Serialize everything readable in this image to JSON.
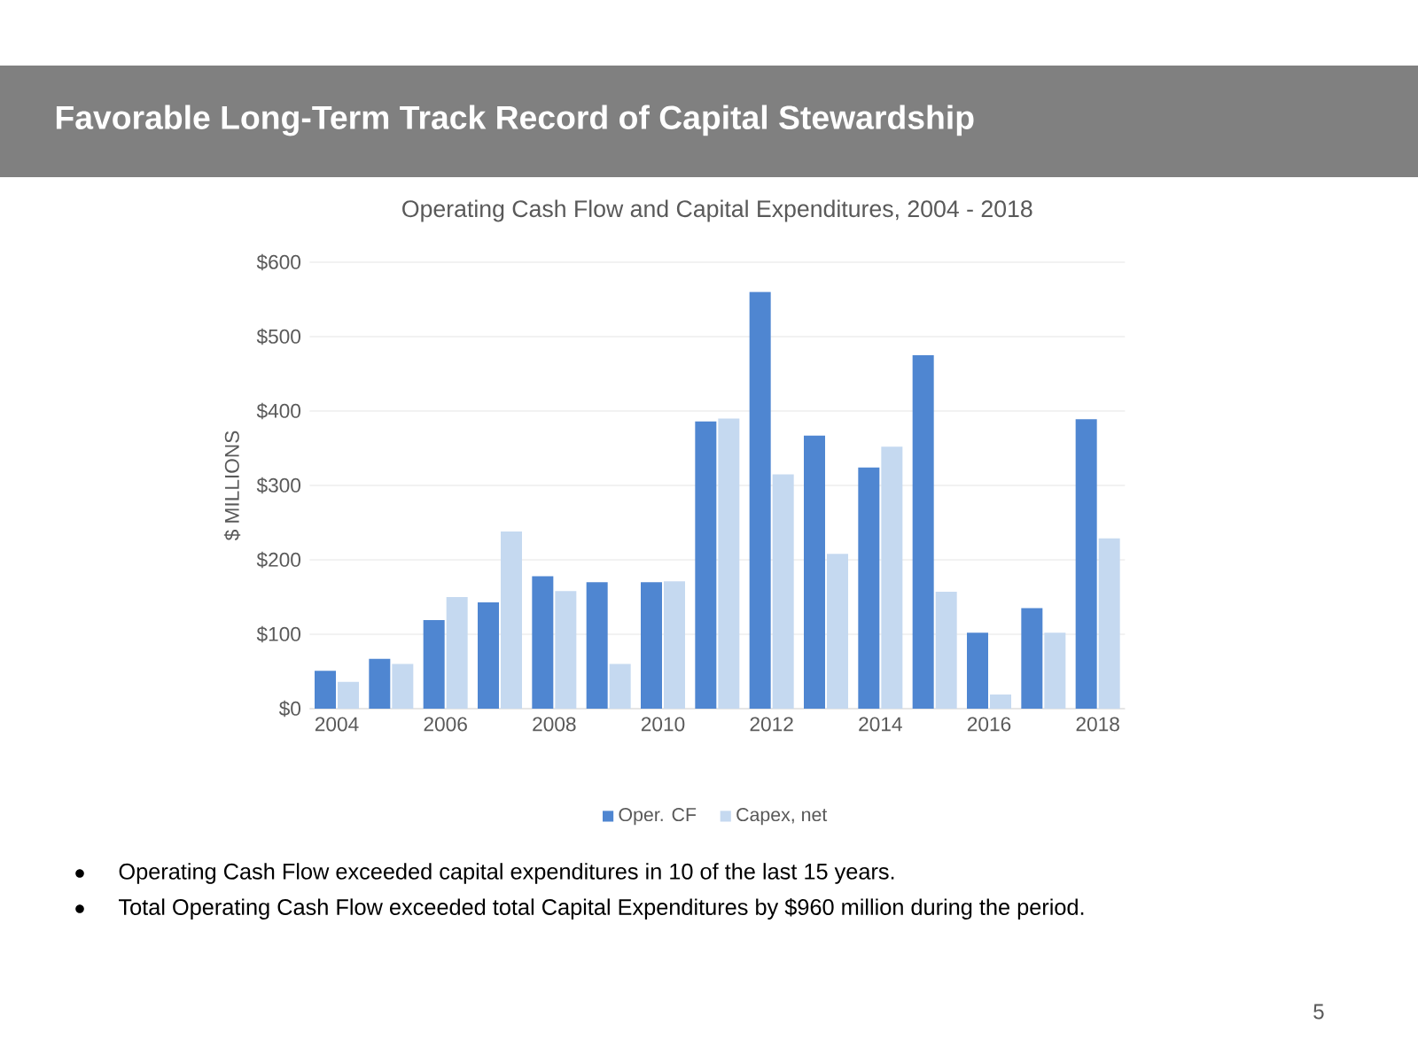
{
  "chart_data": {
    "type": "bar",
    "title": "Operating Cash Flow and Capital Expenditures, 2004 - 2018",
    "subtitle": "Favorable Long-Term Track Record of Capital Stewardship",
    "ylabel": "$ MILLIONS",
    "categories": [
      "2004",
      null,
      "2006",
      null,
      "2008",
      null,
      "2010",
      null,
      "2012",
      null,
      "2014",
      null,
      "2016",
      null,
      "2018"
    ],
    "series": [
      {
        "name": "Oper. CF",
        "color": "#4f86d1",
        "values": [
          51,
          67,
          119,
          143,
          178,
          170,
          170,
          386,
          560,
          367,
          324,
          475,
          102,
          135,
          389
        ]
      },
      {
        "name": "Capex, net",
        "color": "#c5d9f0",
        "values": [
          36,
          60,
          150,
          238,
          158,
          60,
          171,
          390,
          315,
          208,
          352,
          157,
          19,
          102,
          229
        ]
      }
    ],
    "ylim": [
      0,
      600
    ],
    "yticks": [
      {
        "value": 0,
        "label": "$0"
      },
      {
        "value": 100,
        "label": "$100"
      },
      {
        "value": 200,
        "label": "$200"
      },
      {
        "value": 300,
        "label": "$300"
      },
      {
        "value": 400,
        "label": "$400"
      },
      {
        "value": 500,
        "label": "$500"
      },
      {
        "value": 600,
        "label": "$600"
      }
    ],
    "grid": "y",
    "legend": "bottom",
    "annotations": [
      "Operating Cash Flow exceeded capital expenditures in 10 of the last 15 years.",
      "Total Operating Cash Flow exceeded total Capital Expenditures by $960 million during the period.",
      "5"
    ]
  }
}
